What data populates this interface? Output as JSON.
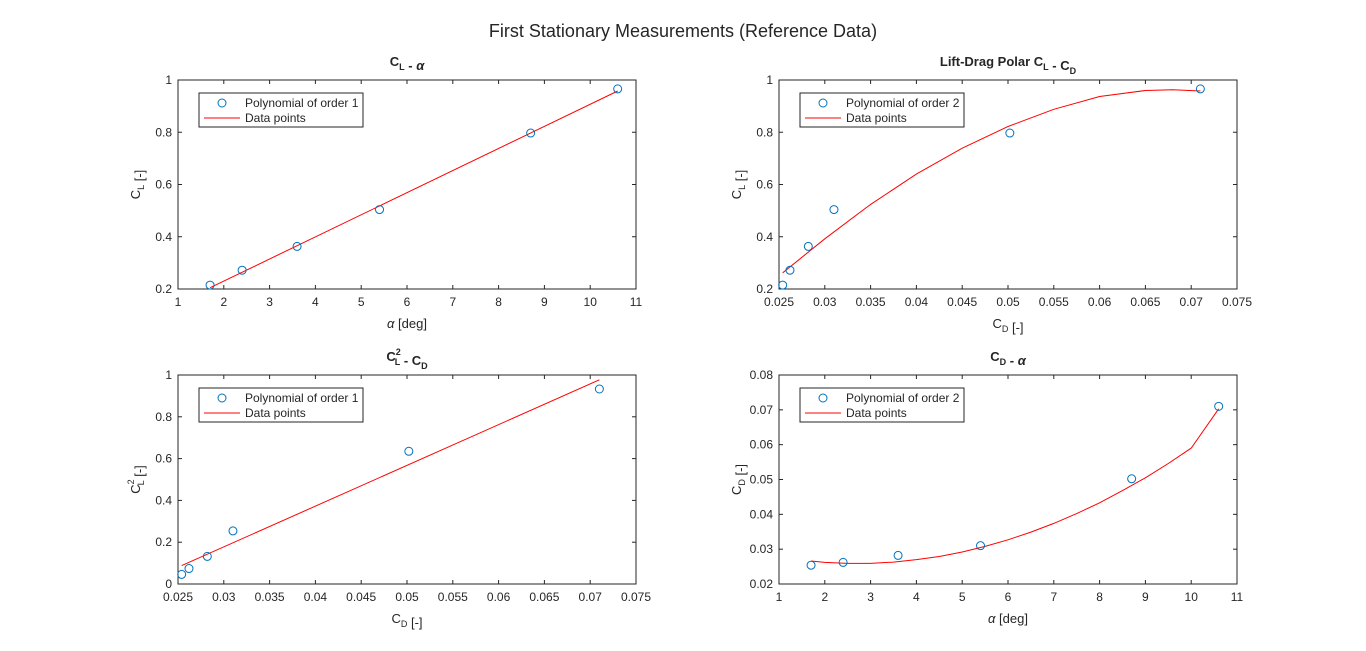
{
  "figure": {
    "title": "First Stationary Measurements (Reference Data)"
  },
  "colors": {
    "marker": "#0072BD",
    "fit": "#FF0000",
    "axis": "#262626"
  },
  "chart_data": [
    {
      "type": "scatter",
      "title": {
        "main": "C",
        "sub": "L",
        "rest": " - ",
        "greek": "α"
      },
      "xlabel": {
        "greek": "α",
        "rest": " [deg]"
      },
      "ylabel": {
        "main": "C",
        "sub": "L",
        "rest": " [-]"
      },
      "xlim": [
        1,
        11
      ],
      "ylim": [
        0.2,
        1
      ],
      "xticks": [
        "1",
        "2",
        "3",
        "4",
        "5",
        "6",
        "7",
        "8",
        "9",
        "10",
        "11"
      ],
      "xtick_values": [
        1,
        2,
        3,
        4,
        5,
        6,
        7,
        8,
        9,
        10,
        11
      ],
      "yticks": [
        "0.2",
        "0.4",
        "0.6",
        "0.8",
        "1"
      ],
      "ytick_values": [
        0.2,
        0.4,
        0.6,
        0.8,
        1
      ],
      "legend": {
        "placement": "top-left",
        "entries": [
          "Polynomial of order 1",
          "Data points"
        ]
      },
      "points": {
        "x": [
          1.7,
          2.4,
          3.6,
          5.4,
          8.7,
          10.6
        ],
        "y": [
          0.215,
          0.272,
          0.363,
          0.504,
          0.797,
          0.966
        ]
      },
      "fit": {
        "order": 1,
        "x": [
          1.7,
          10.6
        ],
        "y": [
          0.205,
          0.958
        ]
      }
    },
    {
      "type": "scatter",
      "title": {
        "lead": "Lift-Drag Polar ",
        "main": "C",
        "sub": "L",
        "rest": " - ",
        "main2": "C",
        "sub2": "D"
      },
      "xlabel": {
        "main": "C",
        "sub": "D",
        "rest": " [-]"
      },
      "ylabel": {
        "main": "C",
        "sub": "L",
        "rest": " [-]"
      },
      "xlim": [
        0.025,
        0.075
      ],
      "ylim": [
        0.2,
        1
      ],
      "xticks": [
        "0.025",
        "0.03",
        "0.035",
        "0.04",
        "0.045",
        "0.05",
        "0.055",
        "0.06",
        "0.065",
        "0.07",
        "0.075"
      ],
      "xtick_values": [
        0.025,
        0.03,
        0.035,
        0.04,
        0.045,
        0.05,
        0.055,
        0.06,
        0.065,
        0.07,
        0.075
      ],
      "yticks": [
        "0.2",
        "0.4",
        "0.6",
        "0.8",
        "1"
      ],
      "ytick_values": [
        0.2,
        0.4,
        0.6,
        0.8,
        1
      ],
      "legend": {
        "placement": "top-left",
        "entries": [
          "Polynomial of order 2",
          "Data points"
        ]
      },
      "points": {
        "x": [
          0.0254,
          0.0262,
          0.0282,
          0.031,
          0.0502,
          0.071
        ],
        "y": [
          0.215,
          0.272,
          0.363,
          0.504,
          0.797,
          0.966
        ]
      },
      "fit": {
        "order": 2,
        "x": [
          0.0254,
          0.03,
          0.035,
          0.04,
          0.045,
          0.05,
          0.055,
          0.06,
          0.065,
          0.068,
          0.071
        ],
        "y": [
          0.262,
          0.392,
          0.524,
          0.64,
          0.739,
          0.822,
          0.888,
          0.937,
          0.96,
          0.963,
          0.958
        ]
      }
    },
    {
      "type": "scatter",
      "title": {
        "main": "C",
        "sup": "2",
        "sub": "L",
        "rest": " - ",
        "main2": "C",
        "sub2": "D"
      },
      "xlabel": {
        "main": "C",
        "sub": "D",
        "rest": " [-]"
      },
      "ylabel": {
        "main": "C",
        "sup": "2",
        "sub": "L",
        "rest": " [-]"
      },
      "xlim": [
        0.025,
        0.075
      ],
      "ylim": [
        0,
        1
      ],
      "xticks": [
        "0.025",
        "0.03",
        "0.035",
        "0.04",
        "0.045",
        "0.05",
        "0.055",
        "0.06",
        "0.065",
        "0.07",
        "0.075"
      ],
      "xtick_values": [
        0.025,
        0.03,
        0.035,
        0.04,
        0.045,
        0.05,
        0.055,
        0.06,
        0.065,
        0.07,
        0.075
      ],
      "yticks": [
        "0",
        "0.2",
        "0.4",
        "0.6",
        "0.8",
        "1"
      ],
      "ytick_values": [
        0,
        0.2,
        0.4,
        0.6,
        0.8,
        1
      ],
      "legend": {
        "placement": "top-left",
        "entries": [
          "Polynomial of order 1",
          "Data points"
        ]
      },
      "points": {
        "x": [
          0.0254,
          0.0262,
          0.0282,
          0.031,
          0.0502,
          0.071
        ],
        "y": [
          0.046,
          0.074,
          0.132,
          0.254,
          0.635,
          0.933
        ]
      },
      "fit": {
        "order": 1,
        "x": [
          0.0254,
          0.071
        ],
        "y": [
          0.088,
          0.977
        ]
      }
    },
    {
      "type": "scatter",
      "title": {
        "main": "C",
        "sub": "D",
        "rest": " - ",
        "greek": "α"
      },
      "xlabel": {
        "greek": "α",
        "rest": " [deg]"
      },
      "ylabel": {
        "main": "C",
        "sub": "D",
        "rest": " [-]"
      },
      "xlim": [
        1,
        11
      ],
      "ylim": [
        0.02,
        0.08
      ],
      "xticks": [
        "1",
        "2",
        "3",
        "4",
        "5",
        "6",
        "7",
        "8",
        "9",
        "10",
        "11"
      ],
      "xtick_values": [
        1,
        2,
        3,
        4,
        5,
        6,
        7,
        8,
        9,
        10,
        11
      ],
      "yticks": [
        "0.02",
        "0.03",
        "0.04",
        "0.05",
        "0.06",
        "0.07",
        "0.08"
      ],
      "ytick_values": [
        0.02,
        0.03,
        0.04,
        0.05,
        0.06,
        0.07,
        0.08
      ],
      "legend": {
        "placement": "top-left",
        "entries": [
          "Polynomial of order 2",
          "Data points"
        ]
      },
      "points": {
        "x": [
          1.7,
          2.4,
          3.6,
          5.4,
          8.7,
          10.6
        ],
        "y": [
          0.0254,
          0.0262,
          0.0282,
          0.031,
          0.0502,
          0.071
        ]
      },
      "fit": {
        "order": 2,
        "x": [
          1.7,
          2.0,
          2.5,
          3.0,
          3.5,
          4.0,
          4.5,
          5.0,
          5.5,
          6.0,
          6.5,
          7.0,
          7.5,
          8.0,
          8.5,
          9.0,
          9.5,
          10.0,
          10.6
        ],
        "y": [
          0.0266,
          0.0262,
          0.0259,
          0.0259,
          0.0263,
          0.027,
          0.0279,
          0.0292,
          0.0308,
          0.0327,
          0.0349,
          0.0374,
          0.0402,
          0.0433,
          0.0468,
          0.0505,
          0.0546,
          0.059,
          0.0703
        ]
      }
    }
  ]
}
